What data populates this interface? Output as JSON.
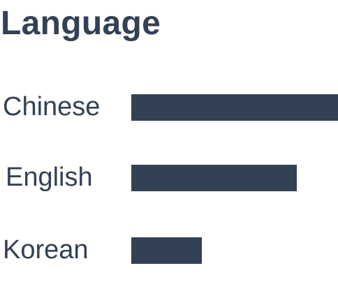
{
  "header": {
    "title": "Language"
  },
  "languages": [
    {
      "label": "Chinese",
      "level": 1.0
    },
    {
      "label": "English",
      "level": 0.8
    },
    {
      "label": "Korean",
      "level": 0.34
    }
  ],
  "colors": {
    "text": "#334155",
    "bar": "#334155",
    "background": "#ffffff"
  }
}
